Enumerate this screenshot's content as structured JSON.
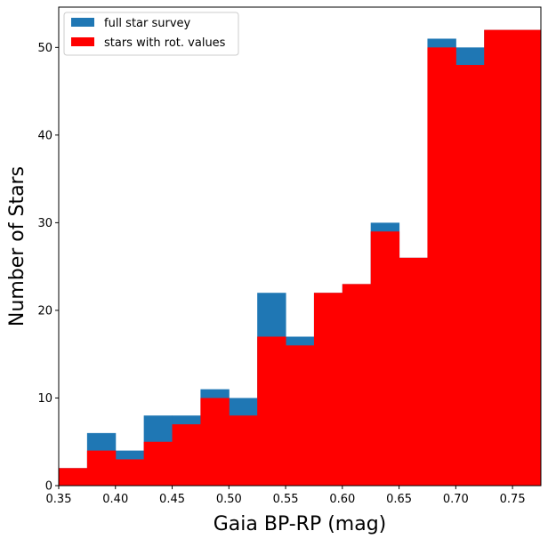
{
  "chart_data": {
    "type": "bar",
    "title": "",
    "xlabel": "Gaia BP-RP (mag)",
    "ylabel": "Number of Stars",
    "xlim": [
      0.35,
      0.775
    ],
    "ylim": [
      0,
      54.6
    ],
    "xticks": [
      "0.35",
      "0.40",
      "0.45",
      "0.50",
      "0.55",
      "0.60",
      "0.65",
      "0.70",
      "0.75"
    ],
    "yticks": [
      "0",
      "10",
      "20",
      "30",
      "40",
      "50"
    ],
    "bin_edges": [
      0.35,
      0.375,
      0.4,
      0.425,
      0.45,
      0.475,
      0.5,
      0.525,
      0.55,
      0.575,
      0.6,
      0.625,
      0.65,
      0.675,
      0.7,
      0.725,
      0.75,
      0.775
    ],
    "series": [
      {
        "name": "full star survey",
        "color": "#1f77b4",
        "values": [
          2,
          6,
          4,
          8,
          8,
          11,
          10,
          22,
          17,
          22,
          23,
          30,
          26,
          51,
          50,
          52,
          52
        ]
      },
      {
        "name": "stars with rot. values",
        "color": "#ff0000",
        "values": [
          2,
          4,
          3,
          5,
          7,
          10,
          8,
          17,
          16,
          22,
          23,
          29,
          26,
          50,
          48,
          52,
          52
        ]
      }
    ],
    "legend_position": "top-left",
    "grid": false
  }
}
